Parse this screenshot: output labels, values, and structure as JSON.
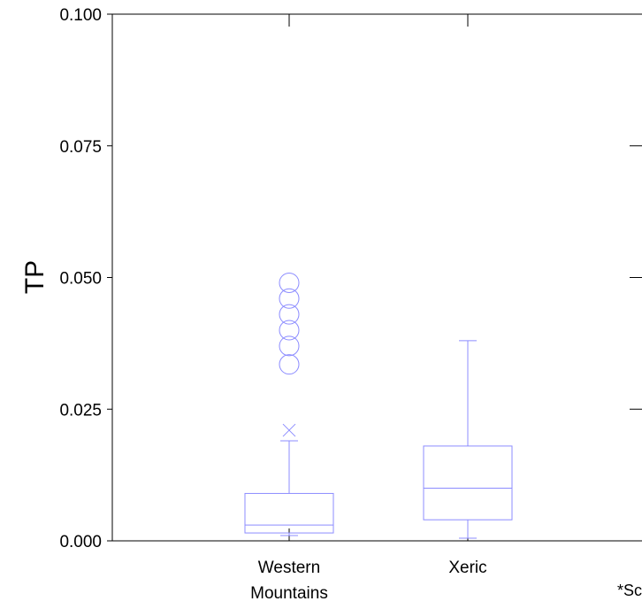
{
  "chart_data": {
    "type": "boxplot",
    "ylabel": "TP",
    "ylim": [
      0,
      0.1
    ],
    "yticks": [
      "0.000",
      "0.025",
      "0.050",
      "0.075",
      "0.100"
    ],
    "ytick_values": [
      0,
      0.025,
      0.05,
      0.075,
      0.1
    ],
    "categories": [
      {
        "lines": [
          "Western",
          "Mountains"
        ]
      },
      {
        "lines": [
          "Xeric"
        ]
      }
    ],
    "boxes": [
      {
        "whisker_low": 0.001,
        "q1": 0.0015,
        "median": 0.003,
        "q3": 0.009,
        "whisker_high": 0.019,
        "far_outliers": [
          0.021
        ],
        "outliers": [
          0.0335,
          0.037,
          0.04,
          0.043,
          0.046,
          0.049
        ]
      },
      {
        "whisker_low": 0.0005,
        "q1": 0.004,
        "median": 0.01,
        "q3": 0.018,
        "whisker_high": 0.038,
        "far_outliers": [],
        "outliers": []
      }
    ],
    "box_color": "#8c8cff",
    "axis_color": "#000000",
    "footnote": "*Sc"
  }
}
